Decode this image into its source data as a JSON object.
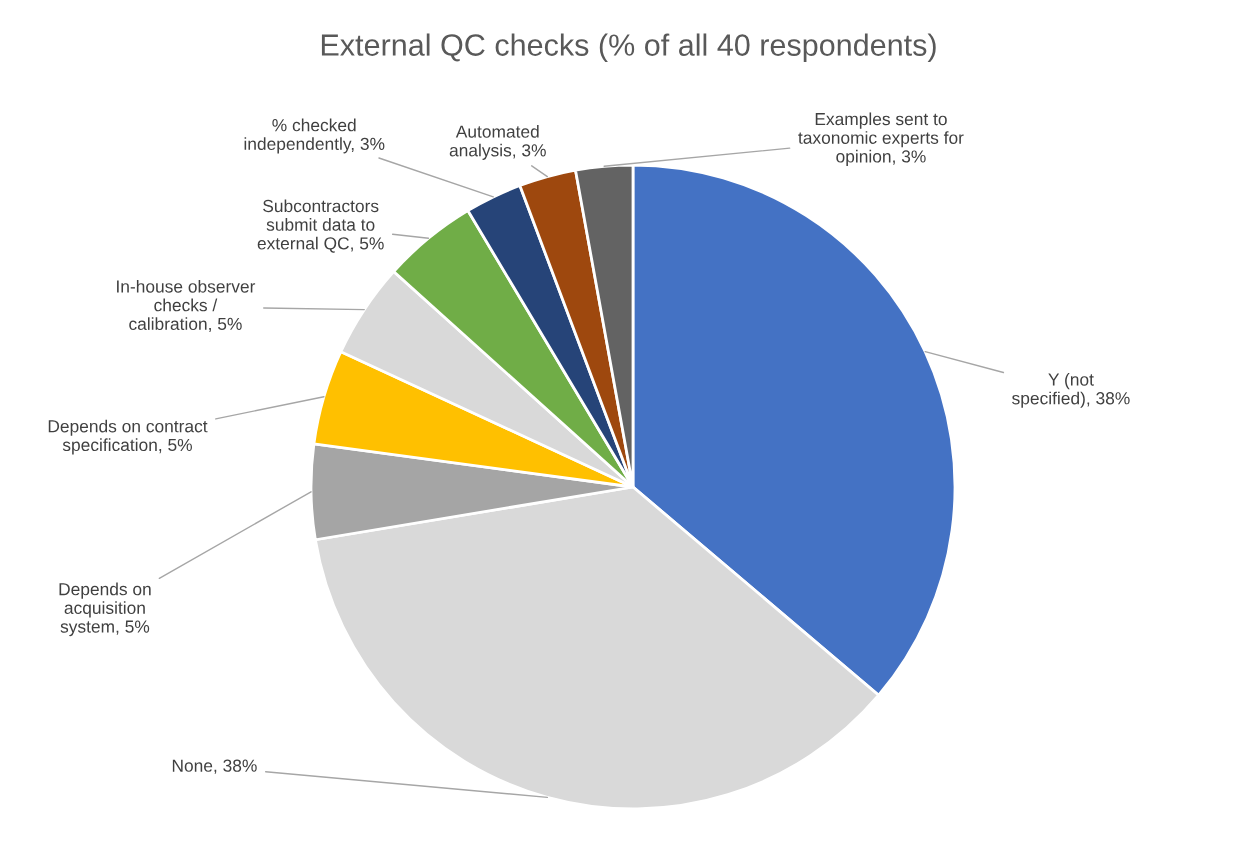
{
  "chart_data": {
    "type": "pie",
    "title": "External QC checks (% of all 40 respondents)",
    "categories": [
      "Y (not specified)",
      "None",
      "Depends on acquisition system",
      "Depends on contract specification",
      "In-house observer checks / calibration",
      "Subcontractors submit data to external QC",
      "% checked independently",
      "Automated analysis",
      "Examples sent to taxonomic experts for opinion"
    ],
    "values": [
      38,
      38,
      5,
      5,
      5,
      5,
      3,
      3,
      3
    ],
    "value_labels": [
      "38%",
      "38%",
      "5%",
      "5%",
      "5%",
      "5%",
      "3%",
      "3%",
      "3%"
    ],
    "legend": false,
    "colors": [
      "#4472c4",
      "#d9d9d9",
      "#a5a5a5",
      "#ffc000",
      "#d9d9d9",
      "#70ad47",
      "#264478",
      "#9e480e",
      "#636363"
    ]
  }
}
